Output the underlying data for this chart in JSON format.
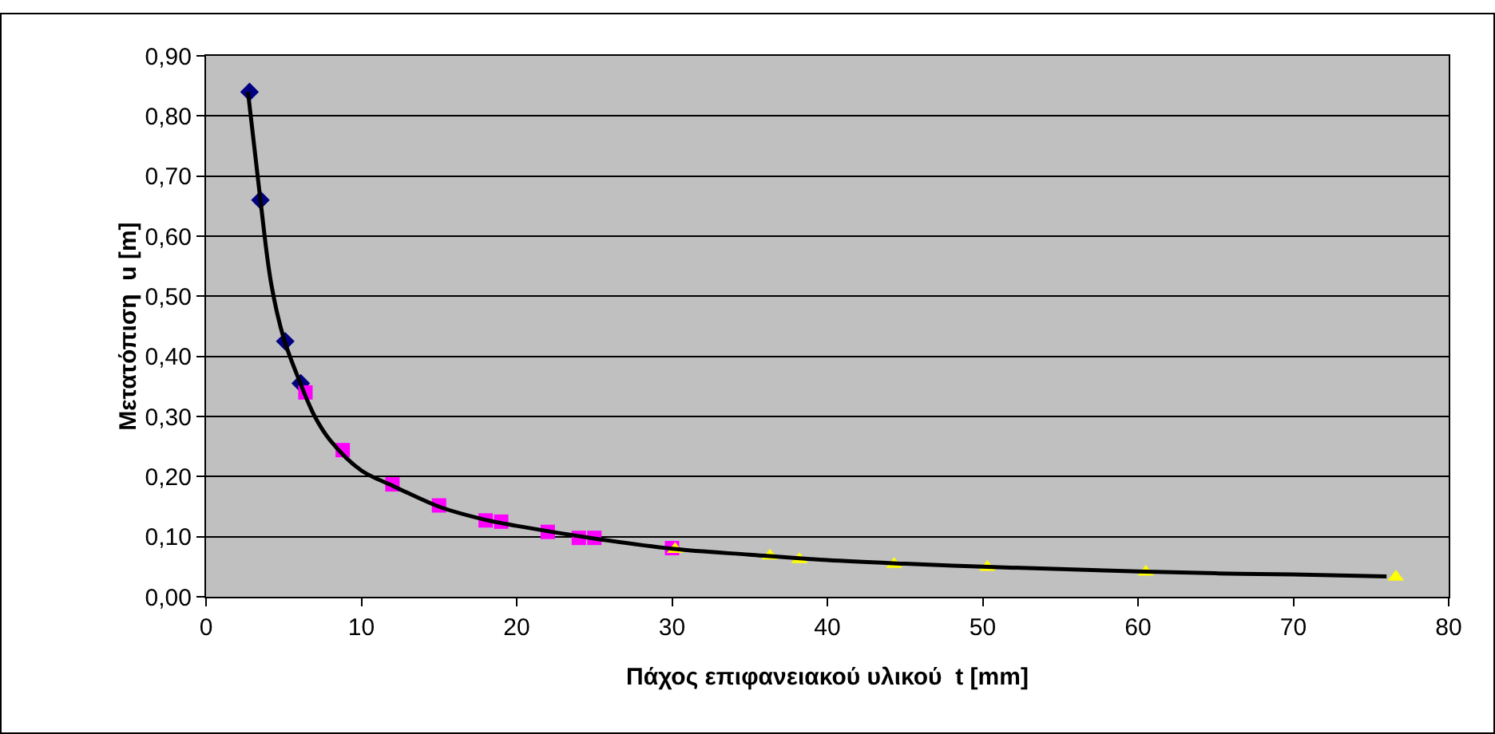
{
  "chart_data": {
    "type": "scatter",
    "xlabel": "Πάχος επιφανειακού υλικού  t [mm]",
    "ylabel": "Μετατόπιση  u [m]",
    "series": [
      {
        "type": "line",
        "color": "#000000",
        "marker": "none",
        "x": [
          2.7,
          3.5,
          4.2,
          5,
          6,
          7,
          8,
          10,
          12,
          15,
          18,
          20,
          25,
          30,
          35,
          40,
          45,
          50,
          55,
          60,
          65,
          70,
          76
        ],
        "values": [
          0.84,
          0.66,
          0.52,
          0.43,
          0.36,
          0.3,
          0.26,
          0.21,
          0.185,
          0.15,
          0.128,
          0.118,
          0.097,
          0.08,
          0.07,
          0.061,
          0.055,
          0.05,
          0.046,
          0.042,
          0.039,
          0.037,
          0.034
        ]
      },
      {
        "color": "#000080",
        "marker": "diamond",
        "x": [
          2.8,
          3.5,
          5.1,
          6.1
        ],
        "values": [
          0.84,
          0.66,
          0.425,
          0.355
        ]
      },
      {
        "color": "#ff00ff",
        "marker": "square",
        "x": [
          6.4,
          8.8,
          12,
          15,
          18,
          19,
          22,
          24,
          25,
          30
        ],
        "values": [
          0.34,
          0.244,
          0.187,
          0.152,
          0.127,
          0.125,
          0.108,
          0.098,
          0.098,
          0.081
        ]
      },
      {
        "color": "#ffff00",
        "marker": "triangle",
        "x": [
          30.2,
          36.3,
          38.2,
          44.3,
          50.3,
          60.5,
          76.6
        ],
        "values": [
          0.079,
          0.068,
          0.062,
          0.054,
          0.049,
          0.041,
          0.033
        ]
      }
    ],
    "xlim": [
      0,
      80
    ],
    "xticks": [
      0,
      10,
      20,
      30,
      40,
      50,
      60,
      70,
      80
    ],
    "ylim": [
      0,
      0.9
    ],
    "yticks": [
      {
        "value": 0,
        "label": "0,00"
      },
      {
        "value": 0.1,
        "label": "0,10"
      },
      {
        "value": 0.2,
        "label": "0,20"
      },
      {
        "value": 0.3,
        "label": "0,30"
      },
      {
        "value": 0.4,
        "label": "0,40"
      },
      {
        "value": 0.5,
        "label": "0,50"
      },
      {
        "value": 0.6,
        "label": "0,60"
      },
      {
        "value": 0.7,
        "label": "0,70"
      },
      {
        "value": 0.8,
        "label": "0,80"
      },
      {
        "value": 0.9,
        "label": "0,90"
      }
    ],
    "grid": "y"
  }
}
